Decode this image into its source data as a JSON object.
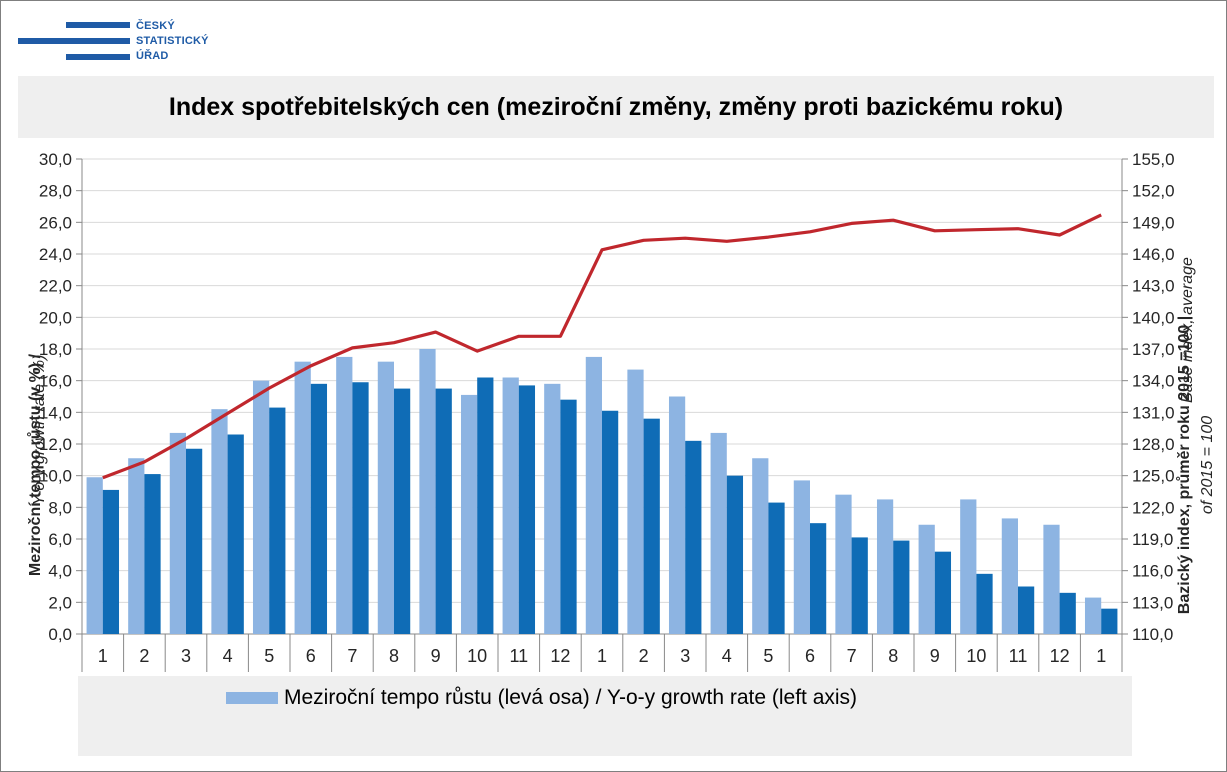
{
  "logo": {
    "line1": "ČESKÝ",
    "line2": "STATISTICKÝ",
    "line3": "ÚŘAD",
    "color": "#1f5ba6"
  },
  "title": "Index spotřebitelských cen (meziroční změny, změny proti bazickému roku)",
  "legend": {
    "yoy_label": "Meziroční tempo růstu (levá osa) / Y-o-y growth rate (left axis)"
  },
  "axes": {
    "left_title_cz": "Meziroční tempo růstu (v %) /",
    "left_title_en": "Y-o-y growth rate (%)",
    "right_title_cz": "Bazický index, průměr roku 2015 =100 |",
    "right_title_en1": "Base index, average",
    "right_title_en2": "of 2015 = 100"
  },
  "chart_data": {
    "type": "bar",
    "categories": [
      "1",
      "2",
      "3",
      "4",
      "5",
      "6",
      "7",
      "8",
      "9",
      "10",
      "11",
      "12",
      "1",
      "2",
      "3",
      "4",
      "5",
      "6",
      "7",
      "8",
      "9",
      "10",
      "11",
      "12",
      "1"
    ],
    "colors": {
      "light_bar": "#8db4e2",
      "dark_bar": "#0f6cb6",
      "line": "#c0272d",
      "grid": "#d9d9d9"
    },
    "series": [
      {
        "name": "Meziroční tempo růstu (levá osa) / Y-o-y growth rate (left axis)",
        "axis": "left",
        "type": "bar",
        "values": [
          9.9,
          11.1,
          12.7,
          14.2,
          16.0,
          17.2,
          17.5,
          17.2,
          18.0,
          15.1,
          16.2,
          15.8,
          17.5,
          16.7,
          15.0,
          12.7,
          11.1,
          9.7,
          8.8,
          8.5,
          6.9,
          8.5,
          7.3,
          6.9,
          2.3
        ]
      },
      {
        "axis": "left",
        "type": "bar",
        "values": [
          9.1,
          10.1,
          11.7,
          12.6,
          14.3,
          15.8,
          15.9,
          15.5,
          15.5,
          16.2,
          15.7,
          14.8,
          14.1,
          13.6,
          12.2,
          10.0,
          8.3,
          7.0,
          6.1,
          5.9,
          5.2,
          3.8,
          3.0,
          2.6,
          1.6
        ]
      },
      {
        "axis": "right",
        "type": "line",
        "values": [
          124.8,
          126.3,
          128.5,
          130.9,
          133.3,
          135.4,
          137.1,
          137.6,
          138.6,
          136.8,
          138.2,
          138.2,
          146.4,
          147.3,
          147.5,
          147.2,
          147.6,
          148.1,
          148.9,
          149.2,
          148.2,
          148.3,
          148.4,
          147.8,
          149.7
        ]
      }
    ],
    "ylim_left": [
      0,
      30
    ],
    "yticks_left": [
      "0,0",
      "2,0",
      "4,0",
      "6,0",
      "8,0",
      "10,0",
      "12,0",
      "14,0",
      "16,0",
      "18,0",
      "20,0",
      "22,0",
      "24,0",
      "26,0",
      "28,0",
      "30,0"
    ],
    "ylim_right": [
      110,
      155
    ],
    "yticks_right": [
      "110,0",
      "113,0",
      "116,0",
      "119,0",
      "122,0",
      "125,0",
      "128,0",
      "131,0",
      "134,0",
      "137,0",
      "140,0",
      "143,0",
      "146,0",
      "149,0",
      "152,0",
      "155,0"
    ],
    "grid": "horizontal",
    "legend_position": "bottom"
  }
}
